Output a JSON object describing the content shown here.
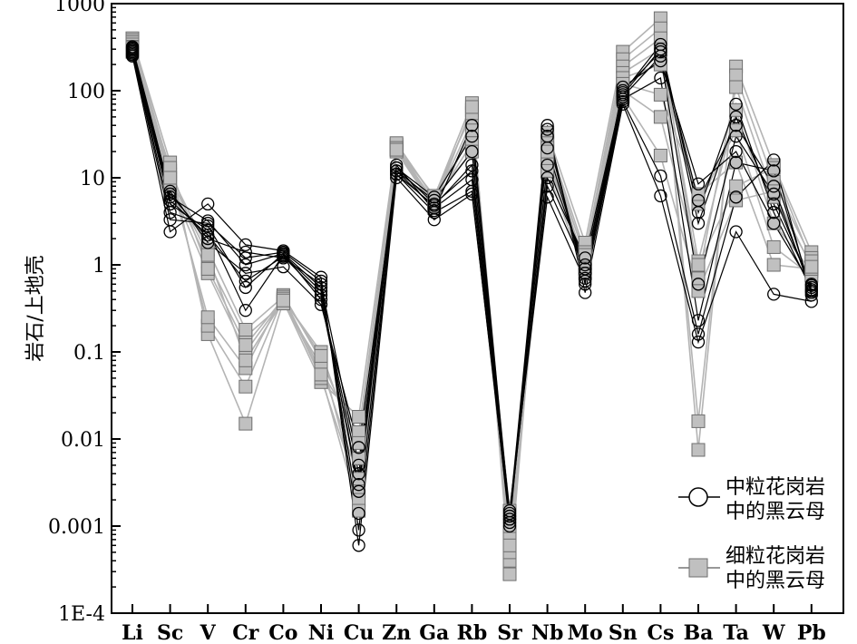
{
  "chart_data": {
    "type": "line",
    "title": "",
    "xlabel": "",
    "ylabel": "岩石/上地壳",
    "y_scale": "log",
    "ylim": [
      0.0001,
      1000
    ],
    "y_ticks": [
      "1E-4",
      "0.001",
      "0.01",
      "0.1",
      "1",
      "10",
      "100",
      "1000"
    ],
    "categories": [
      "Li",
      "Sc",
      "V",
      "Cr",
      "Co",
      "Ni",
      "Cu",
      "Zn",
      "Ga",
      "Rb",
      "Sr",
      "Nb",
      "Mo",
      "Sn",
      "Cs",
      "Ba",
      "Ta",
      "W",
      "Pb"
    ],
    "legend_position": "right",
    "colors": {
      "medium": "#000000",
      "fine_line": "#b4b4b4",
      "fine_marker": "#c0c0c0",
      "fine_marker_stroke": "#6e6e6e"
    },
    "groups": [
      {
        "legend_label": [
          "中粒花岗岩",
          "中的黑云母"
        ],
        "marker": "circle",
        "series": [
          [
            250,
            2.4,
            5.0,
            1.7,
            1.45,
            0.72,
            0.0006,
            10,
            3.3,
            6.5,
            0.0013,
            40,
            0.48,
            70,
            6.2,
            0.13,
            2.4,
            0.46,
            0.38
          ],
          [
            260,
            3.3,
            3.0,
            1.2,
            1.4,
            0.65,
            0.0009,
            11,
            4.0,
            7.0,
            0.0011,
            36,
            0.6,
            75,
            10.5,
            0.16,
            6.0,
            16,
            0.45
          ],
          [
            270,
            4.0,
            2.8,
            0.55,
            1.35,
            0.55,
            0.0014,
            12,
            4.5,
            9.5,
            0.001,
            30,
            0.7,
            80,
            140,
            0.23,
            15,
            12,
            0.5
          ],
          [
            280,
            5.0,
            2.5,
            0.3,
            1.3,
            0.5,
            0.0025,
            13,
            5.0,
            12,
            0.0012,
            22,
            0.8,
            85,
            250,
            0.6,
            30,
            6.5,
            0.55
          ],
          [
            290,
            5.5,
            2.2,
            0.65,
            1.25,
            0.45,
            0.004,
            12,
            5.5,
            20,
            0.0014,
            14,
            1.0,
            90,
            300,
            3.0,
            50,
            5.0,
            0.6
          ],
          [
            300,
            6.0,
            3.2,
            1.0,
            1.35,
            0.4,
            0.003,
            13,
            6.0,
            30,
            0.0012,
            10,
            1.2,
            95,
            340,
            4.0,
            70,
            4.0,
            0.52
          ],
          [
            310,
            6.5,
            2.0,
            1.4,
            1.2,
            0.6,
            0.005,
            14,
            4.2,
            40,
            0.0013,
            8,
            0.9,
            100,
            280,
            5.5,
            40,
            8.0,
            0.48
          ],
          [
            320,
            7.0,
            1.8,
            0.8,
            0.95,
            0.35,
            0.008,
            11,
            4.8,
            14,
            0.0015,
            6,
            0.65,
            110,
            220,
            8.5,
            20,
            3.0,
            0.58
          ]
        ]
      },
      {
        "legend_label": [
          "细粒花岗岩",
          "中的黑云母"
        ],
        "marker": "square",
        "series": [
          [
            400,
            15,
            0.16,
            0.015,
            0.38,
            0.045,
            0.018,
            24,
            6.0,
            72,
            0.00028,
            33,
            1.8,
            280,
            680,
            0.0075,
            190,
            14,
            1.4
          ],
          [
            380,
            12,
            0.2,
            0.04,
            0.42,
            0.06,
            0.012,
            21,
            5.5,
            60,
            0.0004,
            28,
            1.4,
            230,
            520,
            0.016,
            150,
            9.0,
            1.2
          ],
          [
            360,
            10,
            0.25,
            0.065,
            0.45,
            0.08,
            0.009,
            22,
            5.0,
            45,
            0.0005,
            25,
            1.2,
            190,
            400,
            0.7,
            110,
            6.0,
            1.0
          ],
          [
            340,
            8.5,
            0.8,
            0.1,
            0.4,
            0.1,
            0.006,
            20,
            4.5,
            35,
            0.0008,
            22,
            1.0,
            160,
            300,
            1.1,
            60,
            3.0,
            0.85
          ],
          [
            320,
            9.0,
            1.1,
            0.15,
            0.36,
            0.07,
            0.0035,
            23,
            5.2,
            25,
            0.0012,
            18,
            0.9,
            140,
            200,
            5.0,
            35,
            1.6,
            0.75
          ],
          [
            300,
            11,
            1.5,
            0.18,
            0.43,
            0.05,
            0.0025,
            25,
            5.8,
            20,
            0.0015,
            15,
            1.1,
            120,
            90,
            6.5,
            15,
            1.0,
            0.9
          ],
          [
            280,
            13,
            0.9,
            0.12,
            0.41,
            0.09,
            0.002,
            22,
            6.2,
            55,
            0.001,
            20,
            1.3,
            100,
            50,
            1.0,
            8.0,
            13,
            1.1
          ],
          [
            310,
            10,
            1.3,
            0.08,
            0.39,
            0.055,
            0.0015,
            21,
            4.7,
            65,
            0.0006,
            12,
            0.8,
            85,
            18,
            0.5,
            5.5,
            7.0,
            0.95
          ]
        ]
      }
    ]
  }
}
